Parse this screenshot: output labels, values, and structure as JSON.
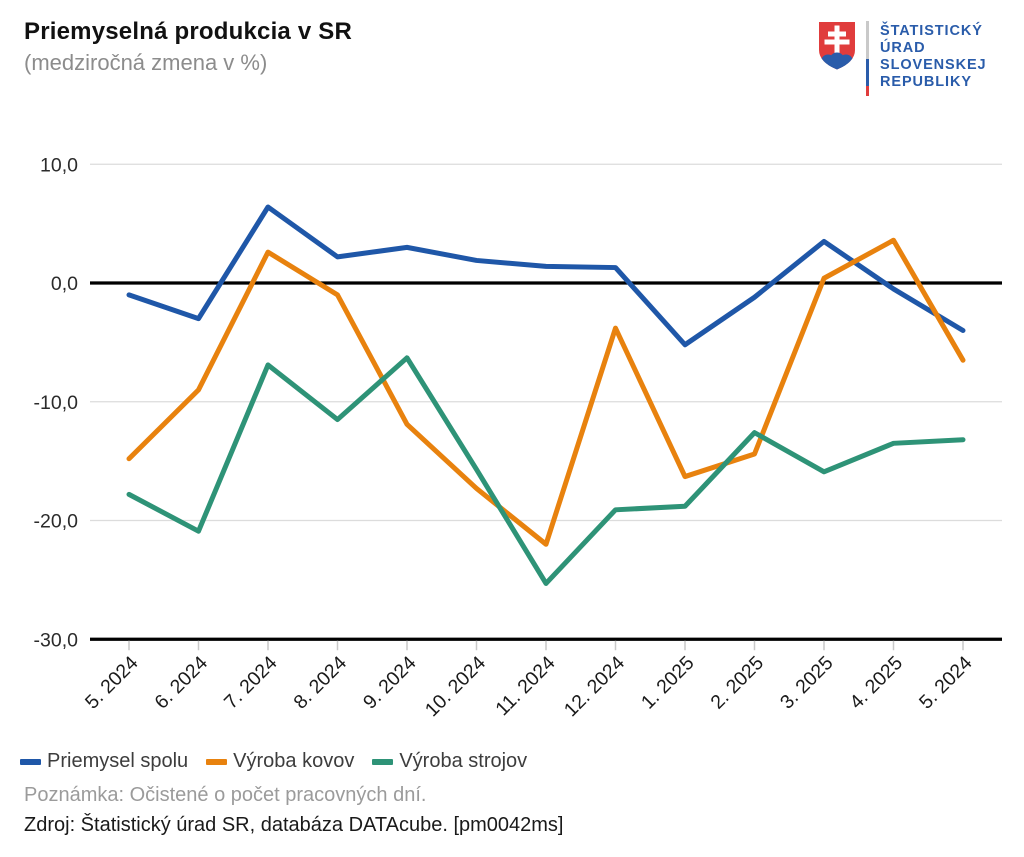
{
  "header": {
    "title": "Priemyselná produkcia v SR",
    "subtitle": "(medziročná zmena v %)"
  },
  "logo": {
    "lines": [
      "ŠTATISTICKÝ",
      "ÚRAD",
      "SLOVENSKEJ",
      "REPUBLIKY"
    ],
    "text_color": "#2A5CAA",
    "shield_red": "#E03C3C",
    "cross_white": "#FFFFFF",
    "hill_blue": "#2A5CAA",
    "bar_colors": [
      "#C9C9C9",
      "#2A5CAA",
      "#E03C3C"
    ]
  },
  "chart_data": {
    "type": "line",
    "categories": [
      "5. 2024",
      "6. 2024",
      "7. 2024",
      "8. 2024",
      "9. 2024",
      "10. 2024",
      "11. 2024",
      "12. 2024",
      "1. 2025",
      "2. 2025",
      "3. 2025",
      "4. 2025",
      "5. 2024"
    ],
    "series": [
      {
        "name": "Priemysel spolu",
        "color": "#1F57A8",
        "values": [
          -1.0,
          -3.0,
          6.4,
          2.2,
          3.0,
          1.9,
          1.4,
          1.3,
          -5.2,
          -1.2,
          3.5,
          -0.5,
          -4.0
        ]
      },
      {
        "name": "Výroba kovov",
        "color": "#E8820E",
        "values": [
          -14.8,
          -9.0,
          2.6,
          -1.0,
          -11.9,
          -17.3,
          -22.0,
          -3.8,
          -16.3,
          -14.4,
          0.4,
          3.6,
          -6.5
        ]
      },
      {
        "name": "Výroba strojov",
        "color": "#2E9377",
        "values": [
          -17.8,
          -20.9,
          -6.9,
          -11.5,
          -6.3,
          -15.7,
          -25.3,
          -19.1,
          -18.8,
          -12.6,
          -15.9,
          -13.5,
          -13.2
        ]
      }
    ],
    "y_ticks": [
      {
        "label": "10,0",
        "value": 10
      },
      {
        "label": "0,0",
        "value": 0
      },
      {
        "label": "-10,0",
        "value": -10
      },
      {
        "label": "-20,0",
        "value": -20
      },
      {
        "label": "-30,0",
        "value": -30
      }
    ],
    "ylim": [
      -30,
      10
    ],
    "xlabel": "",
    "ylabel": "",
    "grid": "horizontal",
    "zero_line": true,
    "legend_position": "bottom"
  },
  "footnotes": {
    "note": "Poznámka: Očistené o počet pracovných dní.",
    "source": "Zdroj: Štatistický úrad SR, databáza DATAcube. [pm0042ms]"
  }
}
